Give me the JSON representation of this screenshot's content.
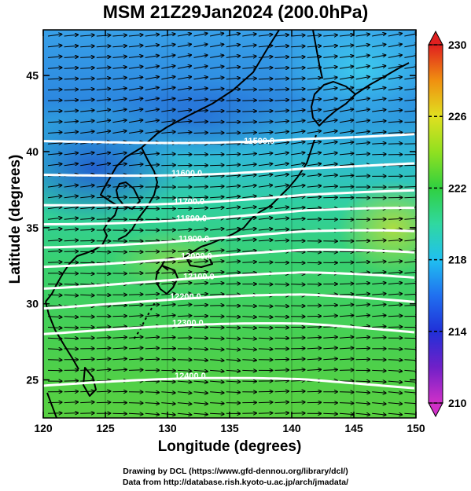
{
  "title": "MSM 21Z29Jan2024 (200.0hPa)",
  "x_axis": {
    "label": "Longitude (degrees)",
    "ticks": [
      "120",
      "125",
      "130",
      "135",
      "140",
      "145",
      "150"
    ],
    "range": [
      120,
      150
    ]
  },
  "y_axis": {
    "label": "Latitude  (degrees)",
    "ticks": [
      "25",
      "30",
      "35",
      "40",
      "45"
    ],
    "range": [
      22.5,
      48
    ]
  },
  "colorbar": {
    "ticks": [
      "210",
      "214",
      "218",
      "222",
      "226",
      "230"
    ],
    "range": [
      210,
      230
    ],
    "colors": [
      "#d030c8",
      "#6020c8",
      "#2040e0",
      "#20a0f0",
      "#30d8c0",
      "#30d060",
      "#60e020",
      "#c0e020",
      "#f0c010",
      "#f06010",
      "#e02020"
    ]
  },
  "contours": [
    {
      "label": "11500.0",
      "lat": 41.0
    },
    {
      "label": "11600.0",
      "lat": 38.9
    },
    {
      "label": "11700.0",
      "lat": 37.0
    },
    {
      "label": "11800.0",
      "lat": 35.8
    },
    {
      "label": "11900.0",
      "lat": 34.3
    },
    {
      "label": "12000.0",
      "lat": 33.0
    },
    {
      "label": "12100.0",
      "lat": 31.5
    },
    {
      "label": "12200.0",
      "lat": 30.1
    },
    {
      "label": "12300.0",
      "lat": 28.3
    },
    {
      "label": "12400.0",
      "lat": 24.8
    }
  ],
  "vectors": "wind",
  "credits": [
    "Drawing by DCL (https://www.gfd-dennou.org/library/dcl/)",
    "Data from http://database.rish.kyoto-u.ac.jp/arch/jmadata/"
  ]
}
